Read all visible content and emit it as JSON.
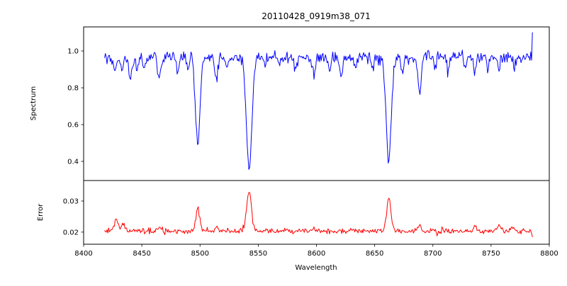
{
  "title": "20110428_0919m38_071",
  "axes": {
    "xlabel": "Wavelength",
    "x_range": [
      8400,
      8800
    ],
    "x_ticks": [
      8400,
      8450,
      8500,
      8550,
      8600,
      8650,
      8700,
      8750,
      8800
    ],
    "x_tick_labels": [
      "8400",
      "8450",
      "8500",
      "8550",
      "8600",
      "8650",
      "8700",
      "8750",
      "8800"
    ],
    "top": {
      "ylabel": "Spectrum",
      "y_range": [
        0.296,
        1.131
      ],
      "y_ticks": [
        0.4,
        0.6,
        0.8,
        1.0
      ],
      "y_tick_labels": [
        "0.4",
        "0.6",
        "0.8",
        "1.0"
      ]
    },
    "bottom": {
      "ylabel": "Error",
      "y_range": [
        0.0161,
        0.0366
      ],
      "y_ticks": [
        0.02,
        0.03
      ],
      "y_tick_labels": [
        "0.02",
        "0.03"
      ]
    }
  },
  "chart_data": [
    {
      "type": "line",
      "panel": "top",
      "name": "spectrum",
      "color": "#0000ff",
      "line_width": 1,
      "x_start": 8418,
      "x_end": 8786,
      "x_step": 0.7,
      "continuum": 0.965,
      "noise_sigma": 0.016,
      "seed": 12345,
      "absorption_lines": [
        {
          "center": 8427.0,
          "depth": 0.09,
          "width": 1.2
        },
        {
          "center": 8433.0,
          "depth": 0.07,
          "width": 1.0
        },
        {
          "center": 8440.0,
          "depth": 0.13,
          "width": 1.3
        },
        {
          "center": 8446.0,
          "depth": 0.07,
          "width": 1.0
        },
        {
          "center": 8452.0,
          "depth": 0.06,
          "width": 1.0
        },
        {
          "center": 8465.0,
          "depth": 0.1,
          "width": 1.3
        },
        {
          "center": 8481.0,
          "depth": 0.08,
          "width": 1.1
        },
        {
          "center": 8490.0,
          "depth": 0.06,
          "width": 1.0
        },
        {
          "center": 8498.0,
          "depth": 0.47,
          "width": 2.0
        },
        {
          "center": 8514.0,
          "depth": 0.11,
          "width": 1.3
        },
        {
          "center": 8523.0,
          "depth": 0.06,
          "width": 1.0
        },
        {
          "center": 8542.1,
          "depth": 0.6,
          "width": 2.4
        },
        {
          "center": 8556.0,
          "depth": 0.05,
          "width": 1.0
        },
        {
          "center": 8568.0,
          "depth": 0.06,
          "width": 1.0
        },
        {
          "center": 8582.0,
          "depth": 0.07,
          "width": 1.1
        },
        {
          "center": 8598.0,
          "depth": 0.09,
          "width": 1.2
        },
        {
          "center": 8611.0,
          "depth": 0.07,
          "width": 1.0
        },
        {
          "center": 8621.0,
          "depth": 0.09,
          "width": 1.2
        },
        {
          "center": 8633.0,
          "depth": 0.06,
          "width": 1.0
        },
        {
          "center": 8648.0,
          "depth": 0.07,
          "width": 1.0
        },
        {
          "center": 8662.1,
          "depth": 0.57,
          "width": 2.2
        },
        {
          "center": 8674.0,
          "depth": 0.09,
          "width": 1.1
        },
        {
          "center": 8688.6,
          "depth": 0.2,
          "width": 1.4
        },
        {
          "center": 8702.0,
          "depth": 0.06,
          "width": 1.0
        },
        {
          "center": 8713.0,
          "depth": 0.08,
          "width": 1.1
        },
        {
          "center": 8728.0,
          "depth": 0.06,
          "width": 1.0
        },
        {
          "center": 8736.0,
          "depth": 0.08,
          "width": 1.1
        },
        {
          "center": 8747.0,
          "depth": 0.06,
          "width": 1.0
        },
        {
          "center": 8757.0,
          "depth": 0.08,
          "width": 1.1
        },
        {
          "center": 8770.0,
          "depth": 0.07,
          "width": 1.0
        }
      ],
      "end_values": [
        0.95,
        1.1
      ],
      "clamp": [
        0.3,
        1.128
      ]
    },
    {
      "type": "line",
      "panel": "bottom",
      "name": "error",
      "color": "#ff0000",
      "line_width": 1,
      "x_start": 8418,
      "x_end": 8786,
      "x_step": 0.7,
      "baseline": 0.0203,
      "noise_sigma": 0.00045,
      "seed": 999,
      "peaks": [
        {
          "center": 8428.0,
          "height": 0.0035,
          "width": 2.0
        },
        {
          "center": 8434.0,
          "height": 0.002,
          "width": 1.5
        },
        {
          "center": 8465.0,
          "height": 0.0015,
          "width": 1.5
        },
        {
          "center": 8498.0,
          "height": 0.0075,
          "width": 1.8
        },
        {
          "center": 8514.0,
          "height": 0.0015,
          "width": 1.2
        },
        {
          "center": 8542.1,
          "height": 0.013,
          "width": 2.0
        },
        {
          "center": 8598.0,
          "height": 0.001,
          "width": 1.2
        },
        {
          "center": 8662.1,
          "height": 0.0105,
          "width": 1.9
        },
        {
          "center": 8688.6,
          "height": 0.002,
          "width": 1.3
        },
        {
          "center": 8736.0,
          "height": 0.0012,
          "width": 1.2
        },
        {
          "center": 8757.0,
          "height": 0.0018,
          "width": 1.3
        },
        {
          "center": 8768.0,
          "height": 0.0015,
          "width": 1.2
        }
      ],
      "end_values": [
        0.0196,
        0.0185
      ],
      "clamp": [
        0.0163,
        0.0363
      ]
    }
  ]
}
